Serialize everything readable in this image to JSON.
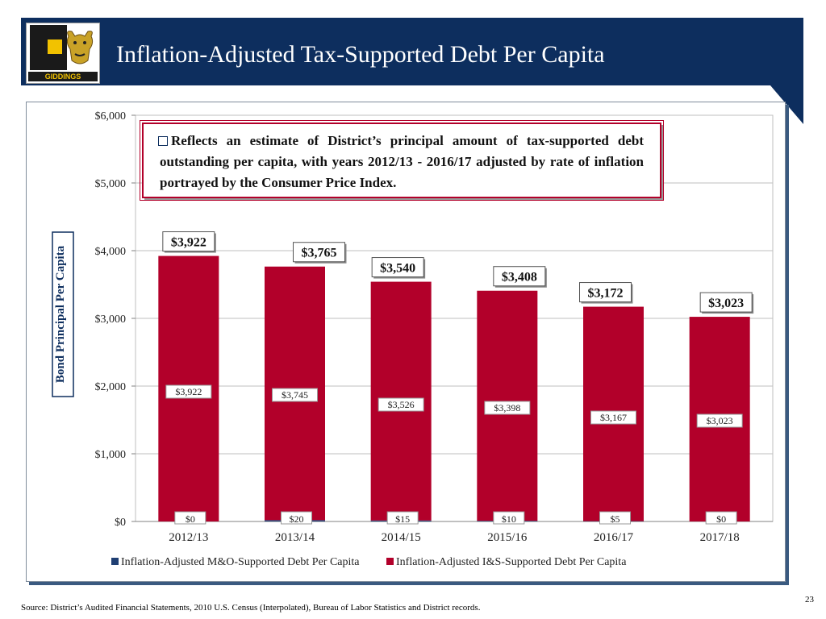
{
  "title": "Inflation-Adjusted Tax-Supported Debt Per Capita",
  "logo": {
    "text": "GIDDINGS"
  },
  "callout": {
    "text": "Reflects an estimate of District’s principal amount of tax-supported debt outstanding per capita, with years 2012/13 - 2016/17 adjusted by rate of inflation portrayed by the Consumer Price Index."
  },
  "source": "Source: District’s Audited Financial Statements, 2010 U.S. Census (Interpolated), Bureau of Labor Statistics and District records.",
  "page_number": "23",
  "colors": {
    "header": "#0d2e5e",
    "is_series": "#b2002a",
    "mo_series": "#1f3f73"
  },
  "chart_data": {
    "type": "bar",
    "stacked": true,
    "title": "",
    "xlabel": "",
    "ylabel": "Bond Principal Per Capita",
    "ylim": [
      0,
      6000
    ],
    "yticks": [
      "$0",
      "$1,000",
      "$2,000",
      "$3,000",
      "$4,000",
      "$5,000",
      "$6,000"
    ],
    "grid": true,
    "legend": "bottom",
    "categories": [
      "2012/13",
      "2013/14",
      "2014/15",
      "2015/16",
      "2016/17",
      "2017/18"
    ],
    "series": [
      {
        "name": "Inflation-Adjusted M&O-Supported Debt Per Capita",
        "values": [
          0,
          20,
          15,
          10,
          5,
          0
        ],
        "labels": [
          "$0",
          "$20",
          "$15",
          "$10",
          "$5",
          "$0"
        ]
      },
      {
        "name": "Inflation-Adjusted I&S-Supported Debt Per Capita",
        "values": [
          3922,
          3745,
          3526,
          3398,
          3167,
          3023
        ],
        "labels": [
          "$3,922",
          "$3,745",
          "$3,526",
          "$3,398",
          "$3,167",
          "$3,023"
        ]
      }
    ],
    "totals": [
      3922,
      3765,
      3540,
      3408,
      3172,
      3023
    ],
    "total_labels": [
      "$3,922",
      "$3,765",
      "$3,540",
      "$3,408",
      "$3,172",
      "$3,023"
    ]
  }
}
